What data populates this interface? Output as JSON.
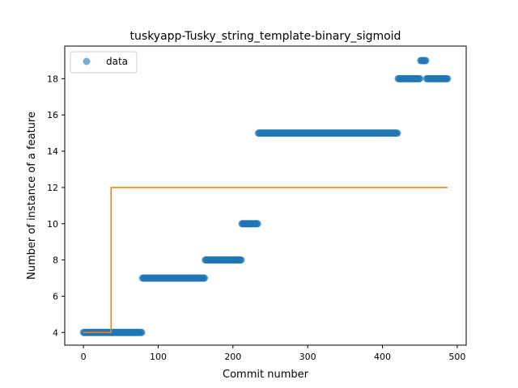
{
  "chart_data": {
    "type": "scatter",
    "title": "tuskyapp-Tusky_string_template-binary_sigmoid",
    "xlabel": "Commit number",
    "ylabel": "Number of instance of a feature",
    "xlim": [
      -25,
      512
    ],
    "ylim": [
      3.3,
      19.8
    ],
    "xticks": [
      0,
      100,
      200,
      300,
      400,
      500
    ],
    "yticks": [
      4,
      6,
      8,
      10,
      12,
      14,
      16,
      18
    ],
    "grid": false,
    "legend": {
      "placement": "top-left",
      "entries": [
        "data"
      ]
    },
    "series": [
      {
        "name": "data",
        "kind": "scatter",
        "color": "#1f77b4",
        "segments": [
          {
            "x_start": 0,
            "x_end": 78,
            "y": 4
          },
          {
            "x_start": 79,
            "x_end": 162,
            "y": 7
          },
          {
            "x_start": 163,
            "x_end": 211,
            "y": 8
          },
          {
            "x_start": 212,
            "x_end": 233,
            "y": 10
          },
          {
            "x_start": 234,
            "x_end": 420,
            "y": 15
          },
          {
            "x_start": 421,
            "x_end": 450,
            "y": 18
          },
          {
            "x_start": 451,
            "x_end": 458,
            "y": 19
          },
          {
            "x_start": 459,
            "x_end": 487,
            "y": 18
          }
        ]
      },
      {
        "kind": "line",
        "color": "#ff7f0e",
        "x": [
          0,
          37,
          37,
          487
        ],
        "y": [
          4,
          4,
          12,
          12
        ]
      }
    ]
  }
}
